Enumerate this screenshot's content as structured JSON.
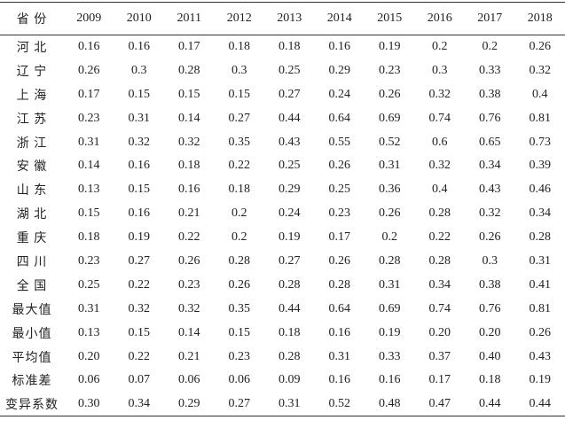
{
  "table": {
    "header": [
      "省 份",
      "2009",
      "2010",
      "2011",
      "2012",
      "2013",
      "2014",
      "2015",
      "2016",
      "2017",
      "2018"
    ],
    "rows": [
      [
        "河 北",
        "0.16",
        "0.16",
        "0.17",
        "0.18",
        "0.18",
        "0.16",
        "0.19",
        "0.2",
        "0.2",
        "0.26"
      ],
      [
        "辽 宁",
        "0.26",
        "0.3",
        "0.28",
        "0.3",
        "0.25",
        "0.29",
        "0.23",
        "0.3",
        "0.33",
        "0.32"
      ],
      [
        "上 海",
        "0.17",
        "0.15",
        "0.15",
        "0.15",
        "0.27",
        "0.24",
        "0.26",
        "0.32",
        "0.38",
        "0.4"
      ],
      [
        "江 苏",
        "0.23",
        "0.31",
        "0.14",
        "0.27",
        "0.44",
        "0.64",
        "0.69",
        "0.74",
        "0.76",
        "0.81"
      ],
      [
        "浙 江",
        "0.31",
        "0.32",
        "0.32",
        "0.35",
        "0.43",
        "0.55",
        "0.52",
        "0.6",
        "0.65",
        "0.73"
      ],
      [
        "安 徽",
        "0.14",
        "0.16",
        "0.18",
        "0.22",
        "0.25",
        "0.26",
        "0.31",
        "0.32",
        "0.34",
        "0.39"
      ],
      [
        "山 东",
        "0.13",
        "0.15",
        "0.16",
        "0.18",
        "0.29",
        "0.25",
        "0.36",
        "0.4",
        "0.43",
        "0.46"
      ],
      [
        "湖 北",
        "0.15",
        "0.16",
        "0.21",
        "0.2",
        "0.24",
        "0.23",
        "0.26",
        "0.28",
        "0.32",
        "0.34"
      ],
      [
        "重 庆",
        "0.18",
        "0.19",
        "0.22",
        "0.2",
        "0.19",
        "0.17",
        "0.2",
        "0.22",
        "0.26",
        "0.28"
      ],
      [
        "四 川",
        "0.23",
        "0.27",
        "0.26",
        "0.28",
        "0.27",
        "0.26",
        "0.28",
        "0.28",
        "0.3",
        "0.31"
      ],
      [
        "全 国",
        "0.25",
        "0.22",
        "0.23",
        "0.26",
        "0.28",
        "0.28",
        "0.31",
        "0.34",
        "0.38",
        "0.41"
      ],
      [
        "最大值",
        "0.31",
        "0.32",
        "0.32",
        "0.35",
        "0.44",
        "0.64",
        "0.69",
        "0.74",
        "0.76",
        "0.81"
      ],
      [
        "最小值",
        "0.13",
        "0.15",
        "0.14",
        "0.15",
        "0.18",
        "0.16",
        "0.19",
        "0.20",
        "0.20",
        "0.26"
      ],
      [
        "平均值",
        "0.20",
        "0.22",
        "0.21",
        "0.23",
        "0.28",
        "0.31",
        "0.33",
        "0.37",
        "0.40",
        "0.43"
      ],
      [
        "标准差",
        "0.06",
        "0.07",
        "0.06",
        "0.06",
        "0.09",
        "0.16",
        "0.16",
        "0.17",
        "0.18",
        "0.19"
      ],
      [
        "变异系数",
        "0.30",
        "0.34",
        "0.29",
        "0.27",
        "0.31",
        "0.52",
        "0.48",
        "0.47",
        "0.44",
        "0.44"
      ]
    ]
  }
}
